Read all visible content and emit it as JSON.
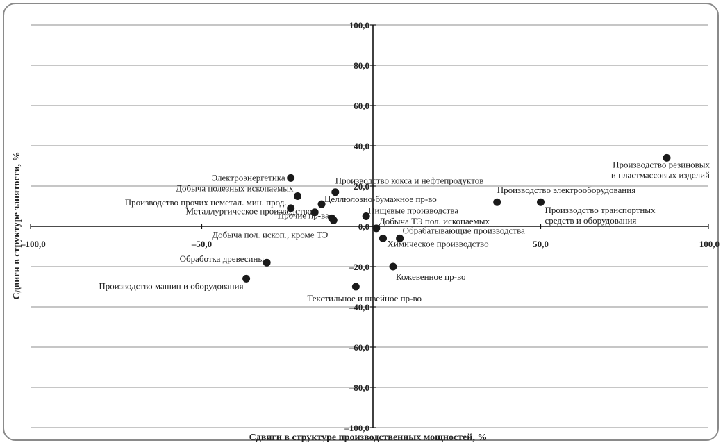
{
  "chart_data": {
    "type": "scatter",
    "xlabel": "Сдвиги в структуре производственных мощностей, %",
    "ylabel": "Сдвиги в структуре занятости, %",
    "xlim": [
      -100,
      100
    ],
    "ylim": [
      -100,
      100
    ],
    "grid": "horizontal",
    "x_ticks": [
      -100,
      -50,
      0,
      50,
      100
    ],
    "y_ticks": [
      -100,
      -80,
      -60,
      -40,
      -20,
      0,
      20,
      40,
      60,
      80,
      100
    ],
    "x_tick_labels": [
      "–100,0",
      "–50,0",
      "0,0",
      "50,0",
      "100,0"
    ],
    "y_tick_labels": [
      "–100,0",
      "–80,0",
      "–60,0",
      "–40,0",
      "–20,0",
      "0,0",
      "20,0",
      "40,0",
      "60,0",
      "80,0",
      "100,0"
    ],
    "marker_color": "#1a1a1a",
    "points": [
      {
        "name": "Электроэнергетика",
        "x": -24,
        "y": 24
      },
      {
        "name": "Добыча полезных ископаемых",
        "x": -22,
        "y": 15
      },
      {
        "name": "Производство прочих неметал. мин. прод.",
        "x": -24,
        "y": 9
      },
      {
        "name": "Металлургическое производство",
        "x": -17,
        "y": 7
      },
      {
        "name": "Прочие пр-ва",
        "x": -12,
        "y": 4
      },
      {
        "name": "Добыча пол. ископ., кроме ТЭ",
        "x": -11.5,
        "y": 3
      },
      {
        "name": "Целлюлозно-бумажное пр-во",
        "x": -15,
        "y": 11
      },
      {
        "name": "Производство кокса и нефтепродуктов",
        "x": -11,
        "y": 17
      },
      {
        "name": "Пищевые производства",
        "x": -2,
        "y": 5
      },
      {
        "name": "Добыча ТЭ пол. ископаемых",
        "x": 1,
        "y": -1
      },
      {
        "name": "Обрабатывающие производства",
        "x": 8,
        "y": -6
      },
      {
        "name": "Химическое производство",
        "x": 3,
        "y": -6
      },
      {
        "name": "Кожевенное пр-во",
        "x": 6,
        "y": -20
      },
      {
        "name": "Текстильное и швейное пр-во",
        "x": -5,
        "y": -30
      },
      {
        "name": "Обработка древесины",
        "x": -31,
        "y": -18
      },
      {
        "name": "Производство машин и оборудования",
        "x": -37,
        "y": -26
      },
      {
        "name": "Производство электрооборудования",
        "x": 37,
        "y": 12
      },
      {
        "name": "Производство транспортных средств и оборудования",
        "x": 50,
        "y": 12
      },
      {
        "name": "Производство резиновых и пластмассовых изделий",
        "x": 108,
        "y": 34
      }
    ]
  }
}
